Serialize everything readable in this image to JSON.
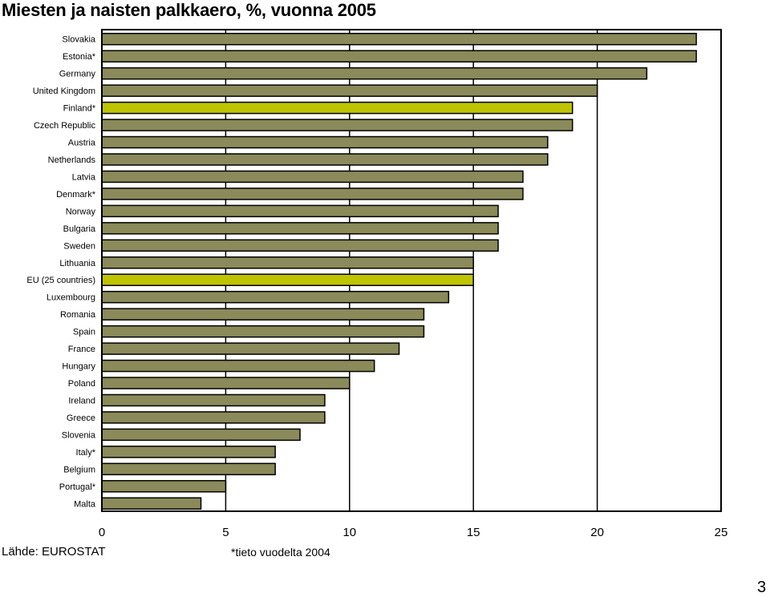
{
  "page": {
    "title": "Miesten ja naisten palkkaero, %, vuonna 2005",
    "source": "Lähde: EUROSTAT",
    "note": "*tieto vuodelta 2004",
    "page_number": "3"
  },
  "chart_data": {
    "type": "bar",
    "orientation": "horizontal",
    "title": "Miesten ja naisten palkkaero, %, vuonna 2005",
    "xlabel": "",
    "ylabel": "",
    "xlim": [
      0,
      25
    ],
    "xticks": [
      0,
      5,
      10,
      15,
      20,
      25
    ],
    "grid": "vertical",
    "colors": {
      "default": "#8a8a5a",
      "highlight": "#bfc400",
      "border": "#000000"
    },
    "categories": [
      "Slovakia",
      "Estonia*",
      "Germany",
      "United Kingdom",
      "Finland*",
      "Czech Republic",
      "Austria",
      "Netherlands",
      "Latvia",
      "Denmark*",
      "Norway",
      "Bulgaria",
      "Sweden",
      "Lithuania",
      "EU (25 countries)",
      "Luxembourg",
      "Romania",
      "Spain",
      "France",
      "Hungary",
      "Poland",
      "Ireland",
      "Greece",
      "Slovenia",
      "Italy*",
      "Belgium",
      "Portugal*",
      "Malta"
    ],
    "values": [
      24,
      24,
      22,
      20,
      19,
      19,
      18,
      18,
      17,
      17,
      16,
      16,
      16,
      15,
      15,
      14,
      13,
      13,
      12,
      11,
      10,
      9,
      9,
      8,
      7,
      7,
      5,
      4
    ],
    "highlighted": [
      "Finland*",
      "EU (25 countries)"
    ]
  }
}
